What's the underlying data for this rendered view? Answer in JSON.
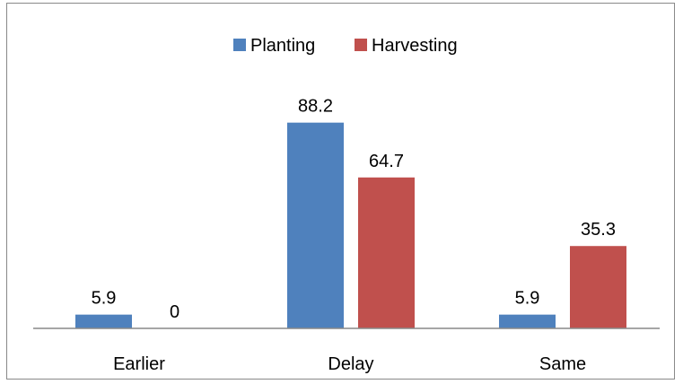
{
  "chart_data": {
    "type": "bar",
    "categories": [
      "Earlier",
      "Delay",
      "Same"
    ],
    "series": [
      {
        "name": "Planting",
        "values": [
          5.9,
          88.2,
          5.9
        ],
        "color": "#4f81bd"
      },
      {
        "name": "Harvesting",
        "values": [
          0,
          64.7,
          35.3
        ],
        "color": "#c0504d"
      }
    ],
    "data_labels": [
      [
        "5.9",
        "88.2",
        "5.9"
      ],
      [
        "0",
        "64.7",
        "35.3"
      ]
    ],
    "title": "",
    "xlabel": "",
    "ylabel": "",
    "ylim": [
      0,
      100
    ],
    "grid": false,
    "legend_position": "top"
  }
}
